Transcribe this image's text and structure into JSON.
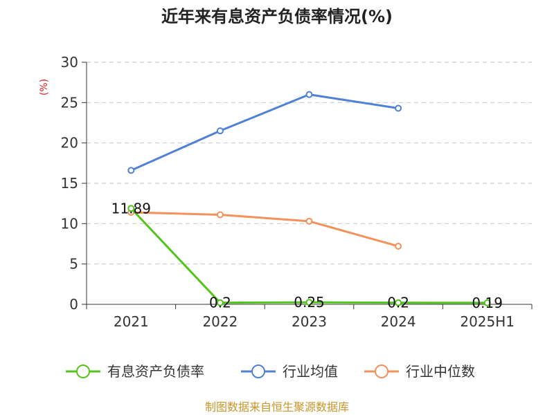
{
  "chart_data": {
    "type": "line",
    "title": "近年来有息资产负债率情况(%)",
    "ylabel": "(%)",
    "categories": [
      "2021",
      "2022",
      "2023",
      "2024",
      "2025H1"
    ],
    "ylim": [
      0,
      30
    ],
    "yticks": [
      0,
      5,
      10,
      15,
      20,
      25,
      30
    ],
    "grid": true,
    "legend_position": "bottom",
    "series": [
      {
        "name": "有息资产负债率",
        "color": "#52c41a",
        "values": [
          11.89,
          0.2,
          0.25,
          0.2,
          0.19
        ],
        "labels": [
          "11.89",
          "0.2",
          "0.25",
          "0.2",
          "0.19"
        ]
      },
      {
        "name": "行业均值",
        "color": "#4f81d6",
        "values": [
          16.6,
          21.5,
          26.0,
          24.3,
          null
        ]
      },
      {
        "name": "行业中位数",
        "color": "#f4905a",
        "values": [
          11.4,
          11.1,
          10.3,
          7.2,
          null
        ]
      }
    ],
    "source": "制图数据来自恒生聚源数据库"
  }
}
